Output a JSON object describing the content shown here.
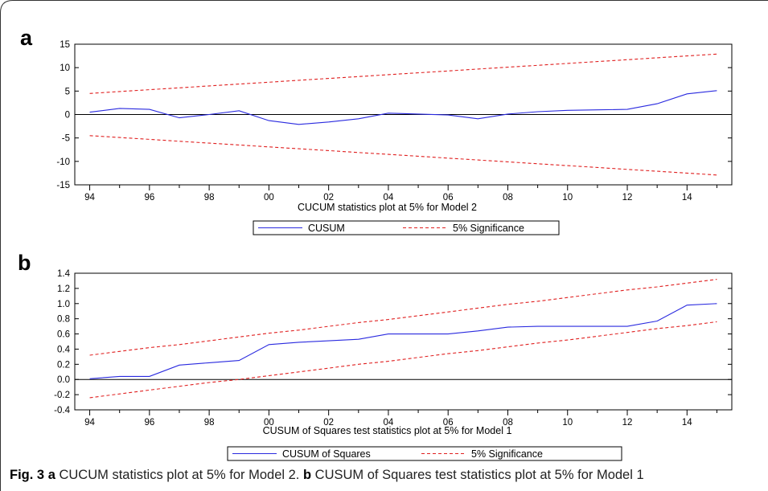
{
  "panels": [
    {
      "letter": "a"
    },
    {
      "letter": "b"
    }
  ],
  "caption": {
    "fig_label": "Fig. 3",
    "a_letter": "a",
    "a_text": " CUCUM statistics plot at 5% for Model 2. ",
    "b_letter": "b",
    "b_text": " CUSUM of Squares test statistics plot at 5% for Model 1"
  },
  "colors": {
    "series": "#2a2adf",
    "significance": "#e02020",
    "axis": "#000000"
  },
  "chart_data": [
    {
      "type": "line",
      "xlabel": "CUCUM statistics plot at 5% for Model 2",
      "ylabel": "",
      "x": [
        1994,
        1995,
        1996,
        1997,
        1998,
        1999,
        2000,
        2001,
        2002,
        2003,
        2004,
        2005,
        2006,
        2007,
        2008,
        2009,
        2010,
        2011,
        2012,
        2013,
        2014,
        2015
      ],
      "xticks": [
        "94",
        "96",
        "98",
        "00",
        "02",
        "04",
        "06",
        "08",
        "10",
        "12",
        "14"
      ],
      "xtick_years": [
        1994,
        1996,
        1998,
        2000,
        2002,
        2004,
        2006,
        2008,
        2010,
        2012,
        2014
      ],
      "ylim": [
        -15,
        15
      ],
      "yticks": [
        "15",
        "10",
        "5",
        "0",
        "-5",
        "-10",
        "-15"
      ],
      "ytick_values": [
        15,
        10,
        5,
        0,
        -5,
        -10,
        -15
      ],
      "zero_line": true,
      "series": [
        {
          "name": "CUSUM",
          "style": "solid",
          "values": [
            0.5,
            1.3,
            1.1,
            -0.7,
            0.0,
            0.8,
            -1.3,
            -2.1,
            -1.6,
            -0.9,
            0.3,
            0.1,
            -0.1,
            -0.9,
            0.1,
            0.6,
            0.9,
            1.0,
            1.1,
            2.3,
            4.4,
            5.1
          ]
        },
        {
          "name": "5% Significance",
          "style": "dashed",
          "values": [
            4.5,
            4.9,
            5.3,
            5.7,
            6.1,
            6.5,
            6.9,
            7.3,
            7.7,
            8.1,
            8.5,
            8.9,
            9.3,
            9.7,
            10.1,
            10.5,
            10.9,
            11.3,
            11.7,
            12.1,
            12.5,
            12.9
          ]
        },
        {
          "name": "5% Significance (lower)",
          "style": "dashed",
          "values": [
            -4.5,
            -4.9,
            -5.3,
            -5.7,
            -6.1,
            -6.5,
            -6.9,
            -7.3,
            -7.7,
            -8.1,
            -8.5,
            -8.9,
            -9.3,
            -9.7,
            -10.1,
            -10.5,
            -10.9,
            -11.3,
            -11.7,
            -12.1,
            -12.5,
            -12.9
          ]
        }
      ],
      "legend": [
        {
          "label": "CUSUM",
          "style": "solid"
        },
        {
          "label": "5% Significance",
          "style": "dashed"
        }
      ],
      "legend_position": "bottom-center"
    },
    {
      "type": "line",
      "xlabel": "CUSUM of Squares test statistics  plot at 5% for Model 1",
      "ylabel": "",
      "x": [
        1994,
        1995,
        1996,
        1997,
        1998,
        1999,
        2000,
        2001,
        2002,
        2003,
        2004,
        2005,
        2006,
        2007,
        2008,
        2009,
        2010,
        2011,
        2012,
        2013,
        2014,
        2015
      ],
      "xticks": [
        "94",
        "96",
        "98",
        "00",
        "02",
        "04",
        "06",
        "08",
        "10",
        "12",
        "14"
      ],
      "xtick_years": [
        1994,
        1996,
        1998,
        2000,
        2002,
        2004,
        2006,
        2008,
        2010,
        2012,
        2014
      ],
      "ylim": [
        -0.4,
        1.4
      ],
      "yticks": [
        "1.4",
        "1.2",
        "1.0",
        "0.8",
        "0.6",
        "0.4",
        "0.2",
        "0.0",
        "-0.2",
        "-0.4"
      ],
      "ytick_values": [
        1.4,
        1.2,
        1.0,
        0.8,
        0.6,
        0.4,
        0.2,
        0.0,
        -0.2,
        -0.4
      ],
      "zero_line": true,
      "series": [
        {
          "name": "CUSUM of Squares",
          "style": "solid",
          "values": [
            0.01,
            0.04,
            0.04,
            0.19,
            0.22,
            0.25,
            0.46,
            0.49,
            0.51,
            0.53,
            0.6,
            0.6,
            0.6,
            0.64,
            0.69,
            0.7,
            0.7,
            0.7,
            0.7,
            0.77,
            0.98,
            1.0
          ]
        },
        {
          "name": "5% Significance",
          "style": "dashed",
          "values": [
            0.32,
            0.37,
            0.42,
            0.46,
            0.51,
            0.56,
            0.61,
            0.65,
            0.7,
            0.75,
            0.79,
            0.84,
            0.89,
            0.94,
            0.99,
            1.03,
            1.08,
            1.13,
            1.18,
            1.22,
            1.27,
            1.32
          ]
        },
        {
          "name": "5% Significance (lower)",
          "style": "dashed",
          "values": [
            -0.24,
            -0.19,
            -0.14,
            -0.09,
            -0.04,
            0.0,
            0.05,
            0.1,
            0.15,
            0.2,
            0.24,
            0.29,
            0.34,
            0.38,
            0.43,
            0.48,
            0.52,
            0.57,
            0.62,
            0.67,
            0.71,
            0.76
          ]
        }
      ],
      "legend": [
        {
          "label": "CUSUM of Squares",
          "style": "solid"
        },
        {
          "label": "5% Significance",
          "style": "dashed"
        }
      ],
      "legend_position": "bottom-center"
    }
  ]
}
